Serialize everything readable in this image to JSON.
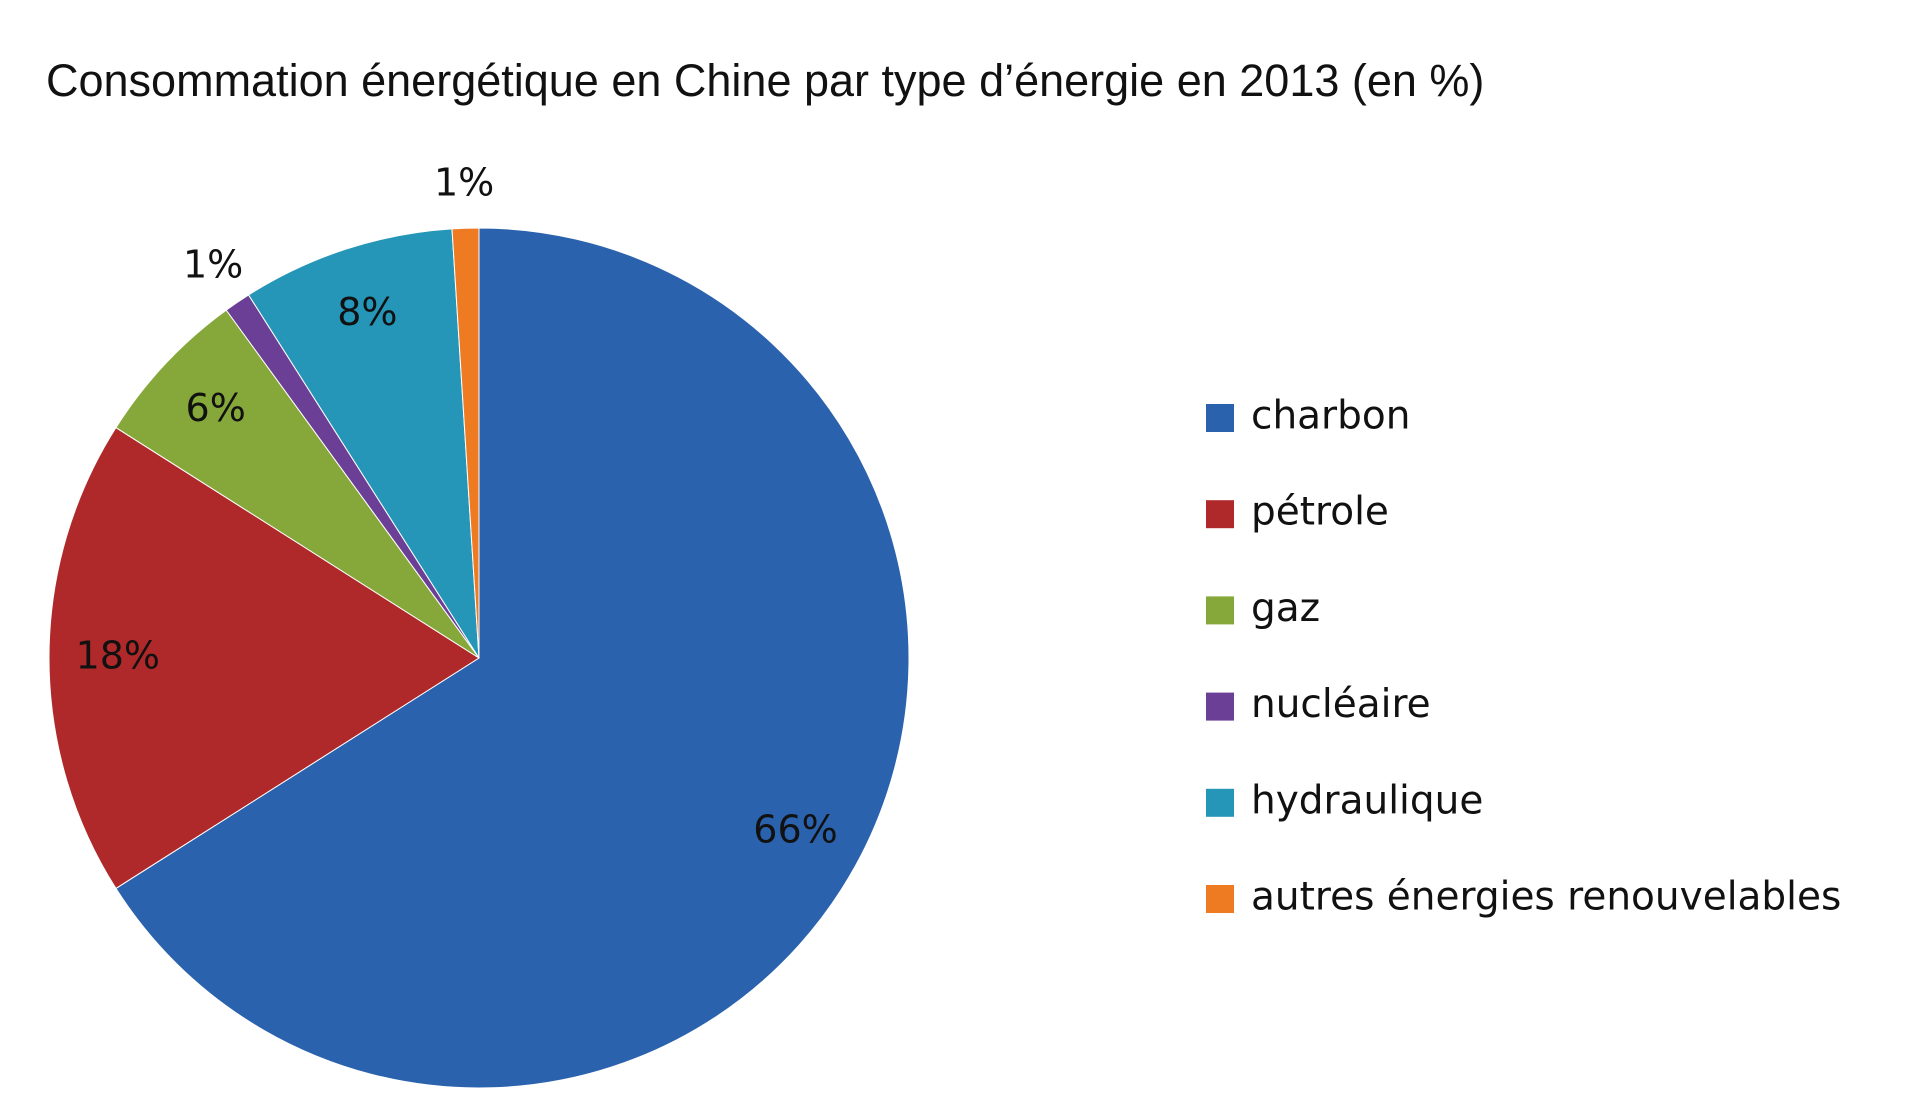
{
  "chart_data": {
    "type": "pie",
    "title": "Consommation énergétique en Chine par type d’énergie en 2013 (en %)",
    "categories": [
      "charbon",
      "pétrole",
      "gaz",
      "nucléaire",
      "hydraulique",
      "autres énergies renouvelables"
    ],
    "values": [
      66,
      18,
      6,
      1,
      8,
      1
    ],
    "value_labels": [
      "66%",
      "18%",
      "6%",
      "1%",
      "8%",
      "1%"
    ],
    "colors": [
      "#2b62ad",
      "#b0292a",
      "#86a83a",
      "#6a3f95",
      "#2596b8",
      "#ee7a22"
    ],
    "legend": "right"
  }
}
